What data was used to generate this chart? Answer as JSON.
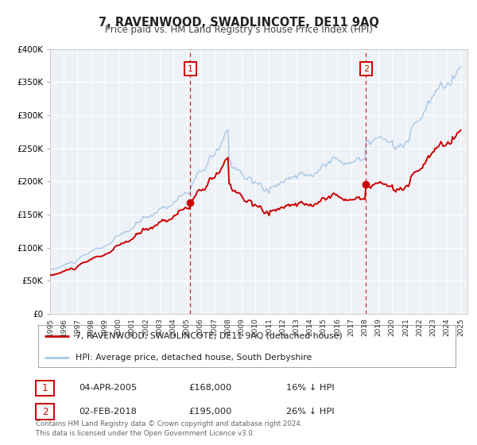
{
  "title": "7, RAVENWOOD, SWADLINCOTE, DE11 9AQ",
  "subtitle": "Price paid vs. HM Land Registry's House Price Index (HPI)",
  "legend_line1": "7, RAVENWOOD, SWADLINCOTE, DE11 9AQ (detached house)",
  "legend_line2": "HPI: Average price, detached house, South Derbyshire",
  "annotation1_label": "1",
  "annotation1_date": "04-APR-2005",
  "annotation1_price": "£168,000",
  "annotation1_hpi": "16% ↓ HPI",
  "annotation1_year": 2005.25,
  "annotation1_value": 168000,
  "annotation2_label": "2",
  "annotation2_date": "02-FEB-2018",
  "annotation2_price": "£195,000",
  "annotation2_hpi": "26% ↓ HPI",
  "annotation2_year": 2018.08,
  "annotation2_value": 195000,
  "hpi_color": "#a8c8e8",
  "price_color": "#cc0000",
  "dot_color": "#cc0000",
  "vline_color": "#cc0000",
  "plot_bg_color": "#eef2f7",
  "ylim": [
    0,
    400000
  ],
  "xlim_start": 1995,
  "xlim_end": 2025.5,
  "footer": "Contains HM Land Registry data © Crown copyright and database right 2024.\nThis data is licensed under the Open Government Licence v3.0."
}
